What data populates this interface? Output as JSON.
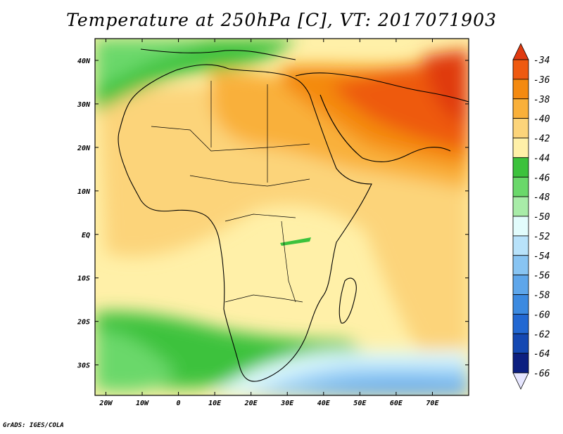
{
  "title": "Temperature at 250hPa [C], VT: 2017071903",
  "credit": "GrADS: IGES/COLA",
  "map": {
    "lon_range": [
      -23,
      80
    ],
    "lat_range": [
      -37,
      45
    ],
    "lat_labels": [
      {
        "lat": 40,
        "text": "40N"
      },
      {
        "lat": 30,
        "text": "30N"
      },
      {
        "lat": 20,
        "text": "20N"
      },
      {
        "lat": 10,
        "text": "10N"
      },
      {
        "lat": 0,
        "text": "EQ"
      },
      {
        "lat": -10,
        "text": "10S"
      },
      {
        "lat": -20,
        "text": "20S"
      },
      {
        "lat": -30,
        "text": "30S"
      }
    ],
    "lon_labels": [
      {
        "lon": -20,
        "text": "20W"
      },
      {
        "lon": -10,
        "text": "10W"
      },
      {
        "lon": 0,
        "text": "0"
      },
      {
        "lon": 10,
        "text": "10E"
      },
      {
        "lon": 20,
        "text": "20E"
      },
      {
        "lon": 30,
        "text": "30E"
      },
      {
        "lon": 40,
        "text": "40E"
      },
      {
        "lon": 50,
        "text": "50E"
      },
      {
        "lon": 60,
        "text": "60E"
      },
      {
        "lon": 70,
        "text": "70E"
      }
    ]
  },
  "colorbar": {
    "labels": [
      "-34",
      "-36",
      "-38",
      "-40",
      "-42",
      "-44",
      "-46",
      "-48",
      "-50",
      "-52",
      "-54",
      "-56",
      "-58",
      "-60",
      "-62",
      "-64",
      "-66"
    ],
    "top_arrow_color": "#e03a10",
    "bottom_arrow_color": "#e6e6ff",
    "colors": [
      "#ee5a10",
      "#f48a10",
      "#f9b03a",
      "#fcd47a",
      "#fff0a8",
      "#3cc23c",
      "#6ad86a",
      "#a8eca8",
      "#e2fcfc",
      "#b8e2fa",
      "#88c4f2",
      "#5ea6ea",
      "#3c8ae0",
      "#2268d2",
      "#1448b2",
      "#0c1f80"
    ]
  }
}
